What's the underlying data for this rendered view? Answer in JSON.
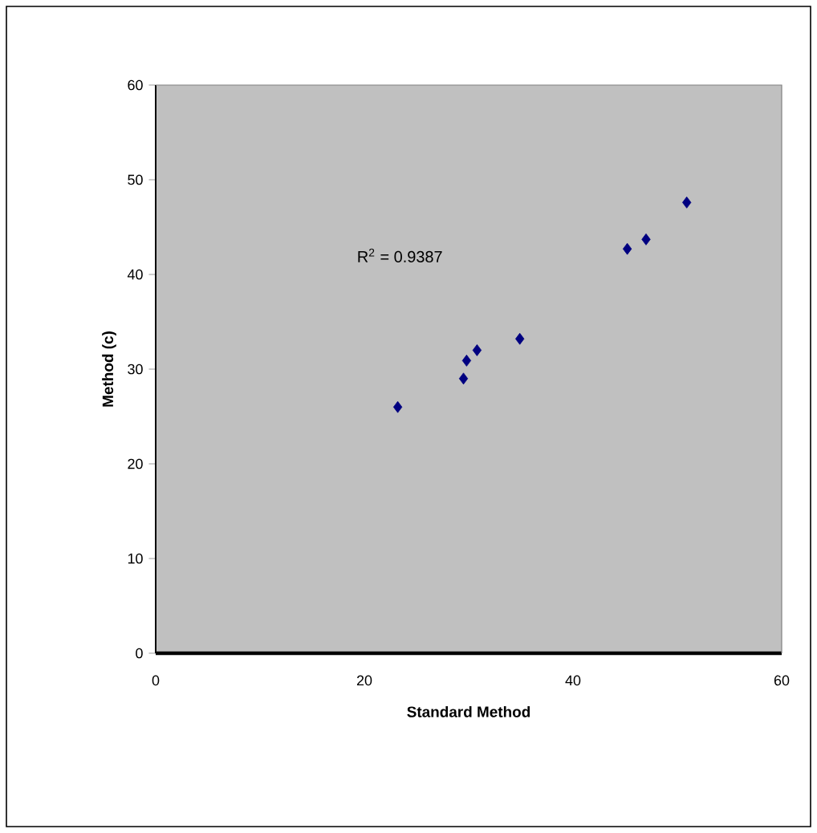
{
  "chart_data": {
    "type": "scatter",
    "xlabel": "Standard  Method",
    "ylabel": "Method (c)",
    "annotations": [
      "R$^{2}$ = 0.9387"
    ],
    "x": [
      23.2,
      29.5,
      29.8,
      30.8,
      34.9,
      45.2,
      47.0,
      50.9
    ],
    "values": [
      26.0,
      29.0,
      30.9,
      32.0,
      33.2,
      42.7,
      43.7,
      47.6
    ],
    "color": "#000080",
    "marker": "diamond",
    "xlim": [
      0,
      60
    ],
    "ylim": [
      0,
      60
    ],
    "xticks": [
      0,
      20,
      40,
      60
    ],
    "yticks": [
      0,
      10,
      20,
      30,
      40,
      50,
      60
    ],
    "grid": false
  }
}
